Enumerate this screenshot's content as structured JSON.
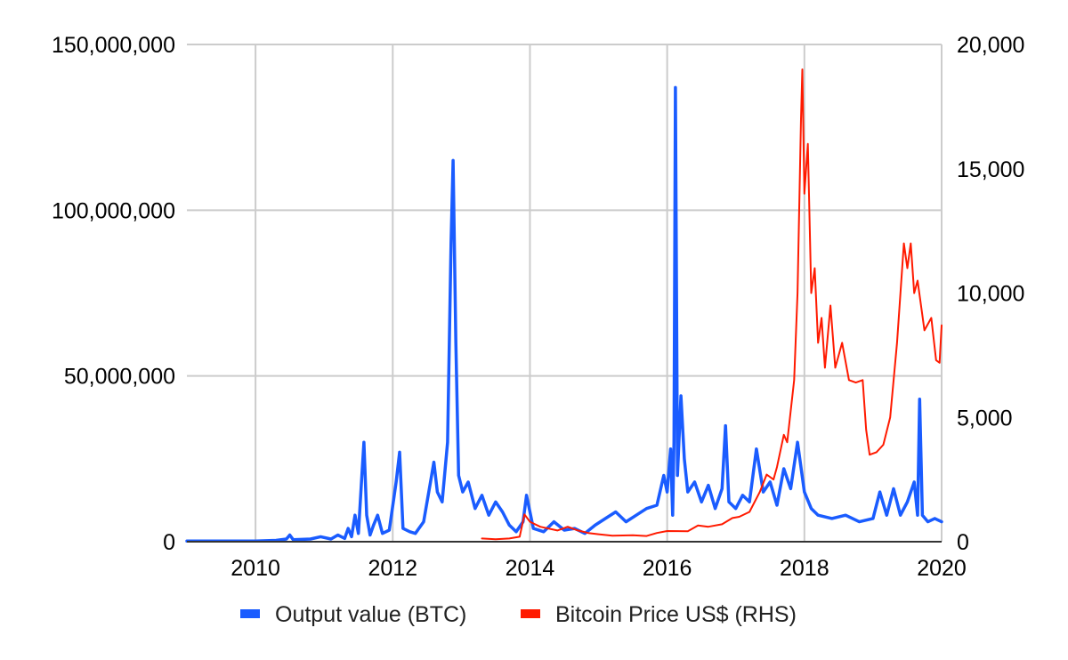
{
  "chart_data": {
    "type": "line",
    "title": "",
    "xlabel": "",
    "ylabel_left": "",
    "ylabel_right": "",
    "grid": true,
    "legend_position": "bottom",
    "x_axis": {
      "min": 2009.0,
      "max": 2020.0,
      "ticks": [
        2010,
        2012,
        2014,
        2016,
        2018,
        2020
      ],
      "tick_labels": [
        "2010",
        "2012",
        "2014",
        "2016",
        "2018",
        "2020"
      ]
    },
    "y_axis_left": {
      "min": 0,
      "max": 150000000,
      "ticks": [
        0,
        50000000,
        100000000,
        150000000
      ],
      "tick_labels": [
        "0",
        "50,000,000",
        "100,000,000",
        "150,000,000"
      ]
    },
    "y_axis_right": {
      "min": 0,
      "max": 20000,
      "ticks": [
        0,
        5000,
        10000,
        15000,
        20000
      ],
      "tick_labels": [
        "0",
        "5,000",
        "10,000",
        "15,000",
        "20,000"
      ]
    },
    "series": [
      {
        "name": "Output value (BTC)",
        "axis": "left",
        "color": "#1a5cff",
        "points": [
          [
            2009.0,
            200000
          ],
          [
            2009.5,
            200000
          ],
          [
            2010.0,
            200000
          ],
          [
            2010.3,
            400000
          ],
          [
            2010.45,
            800000
          ],
          [
            2010.5,
            2000000
          ],
          [
            2010.55,
            600000
          ],
          [
            2010.8,
            800000
          ],
          [
            2010.95,
            1500000
          ],
          [
            2011.1,
            800000
          ],
          [
            2011.2,
            2000000
          ],
          [
            2011.3,
            1000000
          ],
          [
            2011.35,
            4000000
          ],
          [
            2011.4,
            1500000
          ],
          [
            2011.45,
            8000000
          ],
          [
            2011.5,
            2500000
          ],
          [
            2011.55,
            20000000
          ],
          [
            2011.58,
            30000000
          ],
          [
            2011.62,
            8000000
          ],
          [
            2011.67,
            2000000
          ],
          [
            2011.72,
            5000000
          ],
          [
            2011.78,
            8000000
          ],
          [
            2011.85,
            2500000
          ],
          [
            2011.95,
            3500000
          ],
          [
            2012.05,
            18000000
          ],
          [
            2012.1,
            27000000
          ],
          [
            2012.15,
            4000000
          ],
          [
            2012.25,
            3000000
          ],
          [
            2012.33,
            2500000
          ],
          [
            2012.45,
            6000000
          ],
          [
            2012.55,
            18000000
          ],
          [
            2012.6,
            24000000
          ],
          [
            2012.65,
            15000000
          ],
          [
            2012.72,
            12000000
          ],
          [
            2012.8,
            30000000
          ],
          [
            2012.85,
            90000000
          ],
          [
            2012.88,
            115000000
          ],
          [
            2012.92,
            60000000
          ],
          [
            2012.96,
            20000000
          ],
          [
            2013.02,
            15000000
          ],
          [
            2013.1,
            18000000
          ],
          [
            2013.2,
            10000000
          ],
          [
            2013.3,
            14000000
          ],
          [
            2013.4,
            8000000
          ],
          [
            2013.5,
            12000000
          ],
          [
            2013.6,
            9000000
          ],
          [
            2013.7,
            5000000
          ],
          [
            2013.8,
            3000000
          ],
          [
            2013.9,
            6000000
          ],
          [
            2013.95,
            14000000
          ],
          [
            2014.05,
            4000000
          ],
          [
            2014.2,
            3000000
          ],
          [
            2014.35,
            6000000
          ],
          [
            2014.5,
            3500000
          ],
          [
            2014.65,
            4000000
          ],
          [
            2014.8,
            2500000
          ],
          [
            2014.95,
            5000000
          ],
          [
            2015.1,
            7000000
          ],
          [
            2015.25,
            9000000
          ],
          [
            2015.4,
            6000000
          ],
          [
            2015.55,
            8000000
          ],
          [
            2015.7,
            10000000
          ],
          [
            2015.85,
            11000000
          ],
          [
            2015.95,
            20000000
          ],
          [
            2016.0,
            15000000
          ],
          [
            2016.05,
            28000000
          ],
          [
            2016.08,
            8000000
          ],
          [
            2016.1,
            30000000
          ],
          [
            2016.12,
            137000000
          ],
          [
            2016.15,
            20000000
          ],
          [
            2016.2,
            44000000
          ],
          [
            2016.25,
            25000000
          ],
          [
            2016.3,
            15000000
          ],
          [
            2016.4,
            18000000
          ],
          [
            2016.5,
            12000000
          ],
          [
            2016.6,
            17000000
          ],
          [
            2016.7,
            10000000
          ],
          [
            2016.8,
            16000000
          ],
          [
            2016.85,
            35000000
          ],
          [
            2016.9,
            12000000
          ],
          [
            2017.0,
            10000000
          ],
          [
            2017.1,
            14000000
          ],
          [
            2017.2,
            12000000
          ],
          [
            2017.3,
            28000000
          ],
          [
            2017.4,
            15000000
          ],
          [
            2017.5,
            18000000
          ],
          [
            2017.6,
            11000000
          ],
          [
            2017.7,
            22000000
          ],
          [
            2017.8,
            16000000
          ],
          [
            2017.9,
            30000000
          ],
          [
            2018.0,
            15000000
          ],
          [
            2018.1,
            10000000
          ],
          [
            2018.2,
            8000000
          ],
          [
            2018.4,
            7000000
          ],
          [
            2018.6,
            8000000
          ],
          [
            2018.8,
            6000000
          ],
          [
            2019.0,
            7000000
          ],
          [
            2019.1,
            15000000
          ],
          [
            2019.2,
            8000000
          ],
          [
            2019.3,
            16000000
          ],
          [
            2019.4,
            8000000
          ],
          [
            2019.5,
            12000000
          ],
          [
            2019.6,
            18000000
          ],
          [
            2019.65,
            8000000
          ],
          [
            2019.68,
            43000000
          ],
          [
            2019.72,
            8000000
          ],
          [
            2019.8,
            6000000
          ],
          [
            2019.9,
            7000000
          ],
          [
            2020.0,
            6000000
          ]
        ]
      },
      {
        "name": "Bitcoin Price US$ (RHS)",
        "axis": "right",
        "color": "#ff1a00",
        "points": [
          [
            2013.3,
            130
          ],
          [
            2013.5,
            100
          ],
          [
            2013.7,
            130
          ],
          [
            2013.85,
            200
          ],
          [
            2013.92,
            1100
          ],
          [
            2014.0,
            800
          ],
          [
            2014.15,
            600
          ],
          [
            2014.4,
            450
          ],
          [
            2014.55,
            600
          ],
          [
            2014.7,
            450
          ],
          [
            2014.85,
            350
          ],
          [
            2015.0,
            300
          ],
          [
            2015.2,
            240
          ],
          [
            2015.5,
            260
          ],
          [
            2015.7,
            230
          ],
          [
            2015.85,
            350
          ],
          [
            2016.0,
            430
          ],
          [
            2016.3,
            420
          ],
          [
            2016.45,
            650
          ],
          [
            2016.6,
            600
          ],
          [
            2016.8,
            700
          ],
          [
            2016.95,
            950
          ],
          [
            2017.05,
            1000
          ],
          [
            2017.2,
            1200
          ],
          [
            2017.35,
            2000
          ],
          [
            2017.45,
            2700
          ],
          [
            2017.55,
            2500
          ],
          [
            2017.6,
            3000
          ],
          [
            2017.7,
            4300
          ],
          [
            2017.75,
            4000
          ],
          [
            2017.85,
            6500
          ],
          [
            2017.9,
            10000
          ],
          [
            2017.95,
            17000
          ],
          [
            2017.97,
            19000
          ],
          [
            2018.0,
            14000
          ],
          [
            2018.05,
            16000
          ],
          [
            2018.1,
            10000
          ],
          [
            2018.15,
            11000
          ],
          [
            2018.2,
            8000
          ],
          [
            2018.25,
            9000
          ],
          [
            2018.3,
            7000
          ],
          [
            2018.38,
            9500
          ],
          [
            2018.45,
            7000
          ],
          [
            2018.55,
            8000
          ],
          [
            2018.65,
            6500
          ],
          [
            2018.75,
            6400
          ],
          [
            2018.85,
            6500
          ],
          [
            2018.9,
            4500
          ],
          [
            2018.95,
            3500
          ],
          [
            2019.05,
            3600
          ],
          [
            2019.15,
            3900
          ],
          [
            2019.25,
            5000
          ],
          [
            2019.35,
            8000
          ],
          [
            2019.45,
            12000
          ],
          [
            2019.5,
            11000
          ],
          [
            2019.55,
            12000
          ],
          [
            2019.6,
            10000
          ],
          [
            2019.65,
            10500
          ],
          [
            2019.75,
            8500
          ],
          [
            2019.85,
            9000
          ],
          [
            2019.92,
            7300
          ],
          [
            2019.97,
            7200
          ],
          [
            2020.0,
            8700
          ]
        ]
      }
    ]
  }
}
